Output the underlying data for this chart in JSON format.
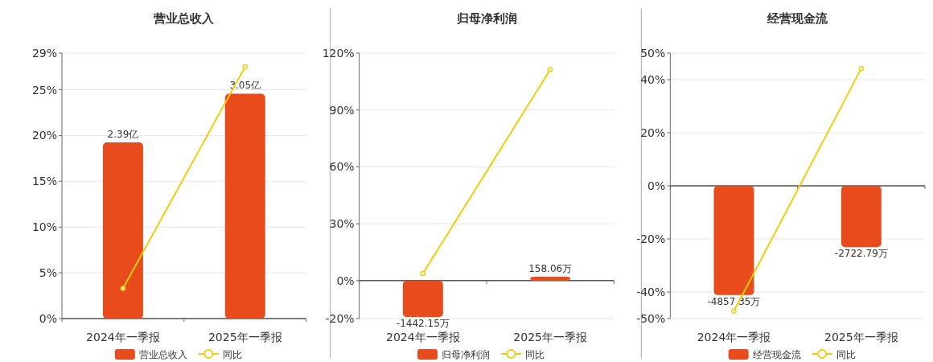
{
  "chart_data": [
    {
      "type": "bar",
      "title": "营业总收入",
      "categories": [
        "2024年一季报",
        "2025年一季报"
      ],
      "series": [
        {
          "name": "营业总收入",
          "axis": "y2",
          "color": "#e84c1c",
          "values": [
            2.39,
            3.05
          ],
          "value_labels": [
            "2.39亿",
            "3.05亿"
          ]
        },
        {
          "name": "同比",
          "type": "line",
          "color": "#f2cc0c",
          "values": [
            3.3,
            27.5
          ]
        }
      ],
      "ylim": [
        0,
        29
      ],
      "yticks": [
        {
          "value": 0,
          "label": "0%"
        },
        {
          "value": 5,
          "label": "5%"
        },
        {
          "value": 10,
          "label": "10%"
        },
        {
          "value": 15,
          "label": "15%"
        },
        {
          "value": 20,
          "label": "20%"
        },
        {
          "value": 25,
          "label": "25%"
        },
        {
          "value": 29,
          "label": "29%"
        }
      ],
      "y2lim": [
        0,
        3.6
      ],
      "grid": "y",
      "legend": "bottom",
      "marker": "circle"
    },
    {
      "type": "bar",
      "title": "归母净利润",
      "categories": [
        "2024年一季报",
        "2025年一季报"
      ],
      "series": [
        {
          "name": "归母净利润",
          "axis": "y2",
          "color": "#e84c1c",
          "values": [
            -1442.15,
            158.06
          ],
          "value_labels": [
            "-1442.15万",
            "158.06万"
          ]
        },
        {
          "name": "同比",
          "type": "line",
          "color": "#f2cc0c",
          "values": [
            3.8,
            111.3
          ]
        }
      ],
      "ylim": [
        -20,
        120
      ],
      "yticks": [
        {
          "value": -20,
          "label": "-20%"
        },
        {
          "value": 0,
          "label": "0%"
        },
        {
          "value": 30,
          "label": "30%"
        },
        {
          "value": 60,
          "label": "60%"
        },
        {
          "value": 90,
          "label": "90%"
        },
        {
          "value": 120,
          "label": "120%"
        }
      ],
      "y2lim": [
        -1500,
        9000
      ],
      "grid": "y",
      "legend": "bottom",
      "marker": "circle"
    },
    {
      "type": "bar",
      "title": "经营现金流",
      "categories": [
        "2024年一季报",
        "2025年一季报"
      ],
      "series": [
        {
          "name": "经营现金流",
          "axis": "y2",
          "color": "#e84c1c",
          "values": [
            -4857.35,
            -2722.79
          ],
          "value_labels": [
            "-4857.35万",
            "-2722.79万"
          ]
        },
        {
          "name": "同比",
          "type": "line",
          "color": "#f2cc0c",
          "values": [
            -47.2,
            44.2
          ]
        }
      ],
      "ylim": [
        -50,
        50
      ],
      "yticks": [
        {
          "value": -50,
          "label": "-50%"
        },
        {
          "value": -40,
          "label": "-40%"
        },
        {
          "value": -20,
          "label": "-20%"
        },
        {
          "value": 0,
          "label": "0%"
        },
        {
          "value": 20,
          "label": "20%"
        },
        {
          "value": 40,
          "label": "40%"
        },
        {
          "value": 50,
          "label": "50%"
        }
      ],
      "y2lim": [
        -5900,
        5900
      ],
      "grid": "y",
      "legend": "bottom",
      "marker": "circle"
    }
  ]
}
